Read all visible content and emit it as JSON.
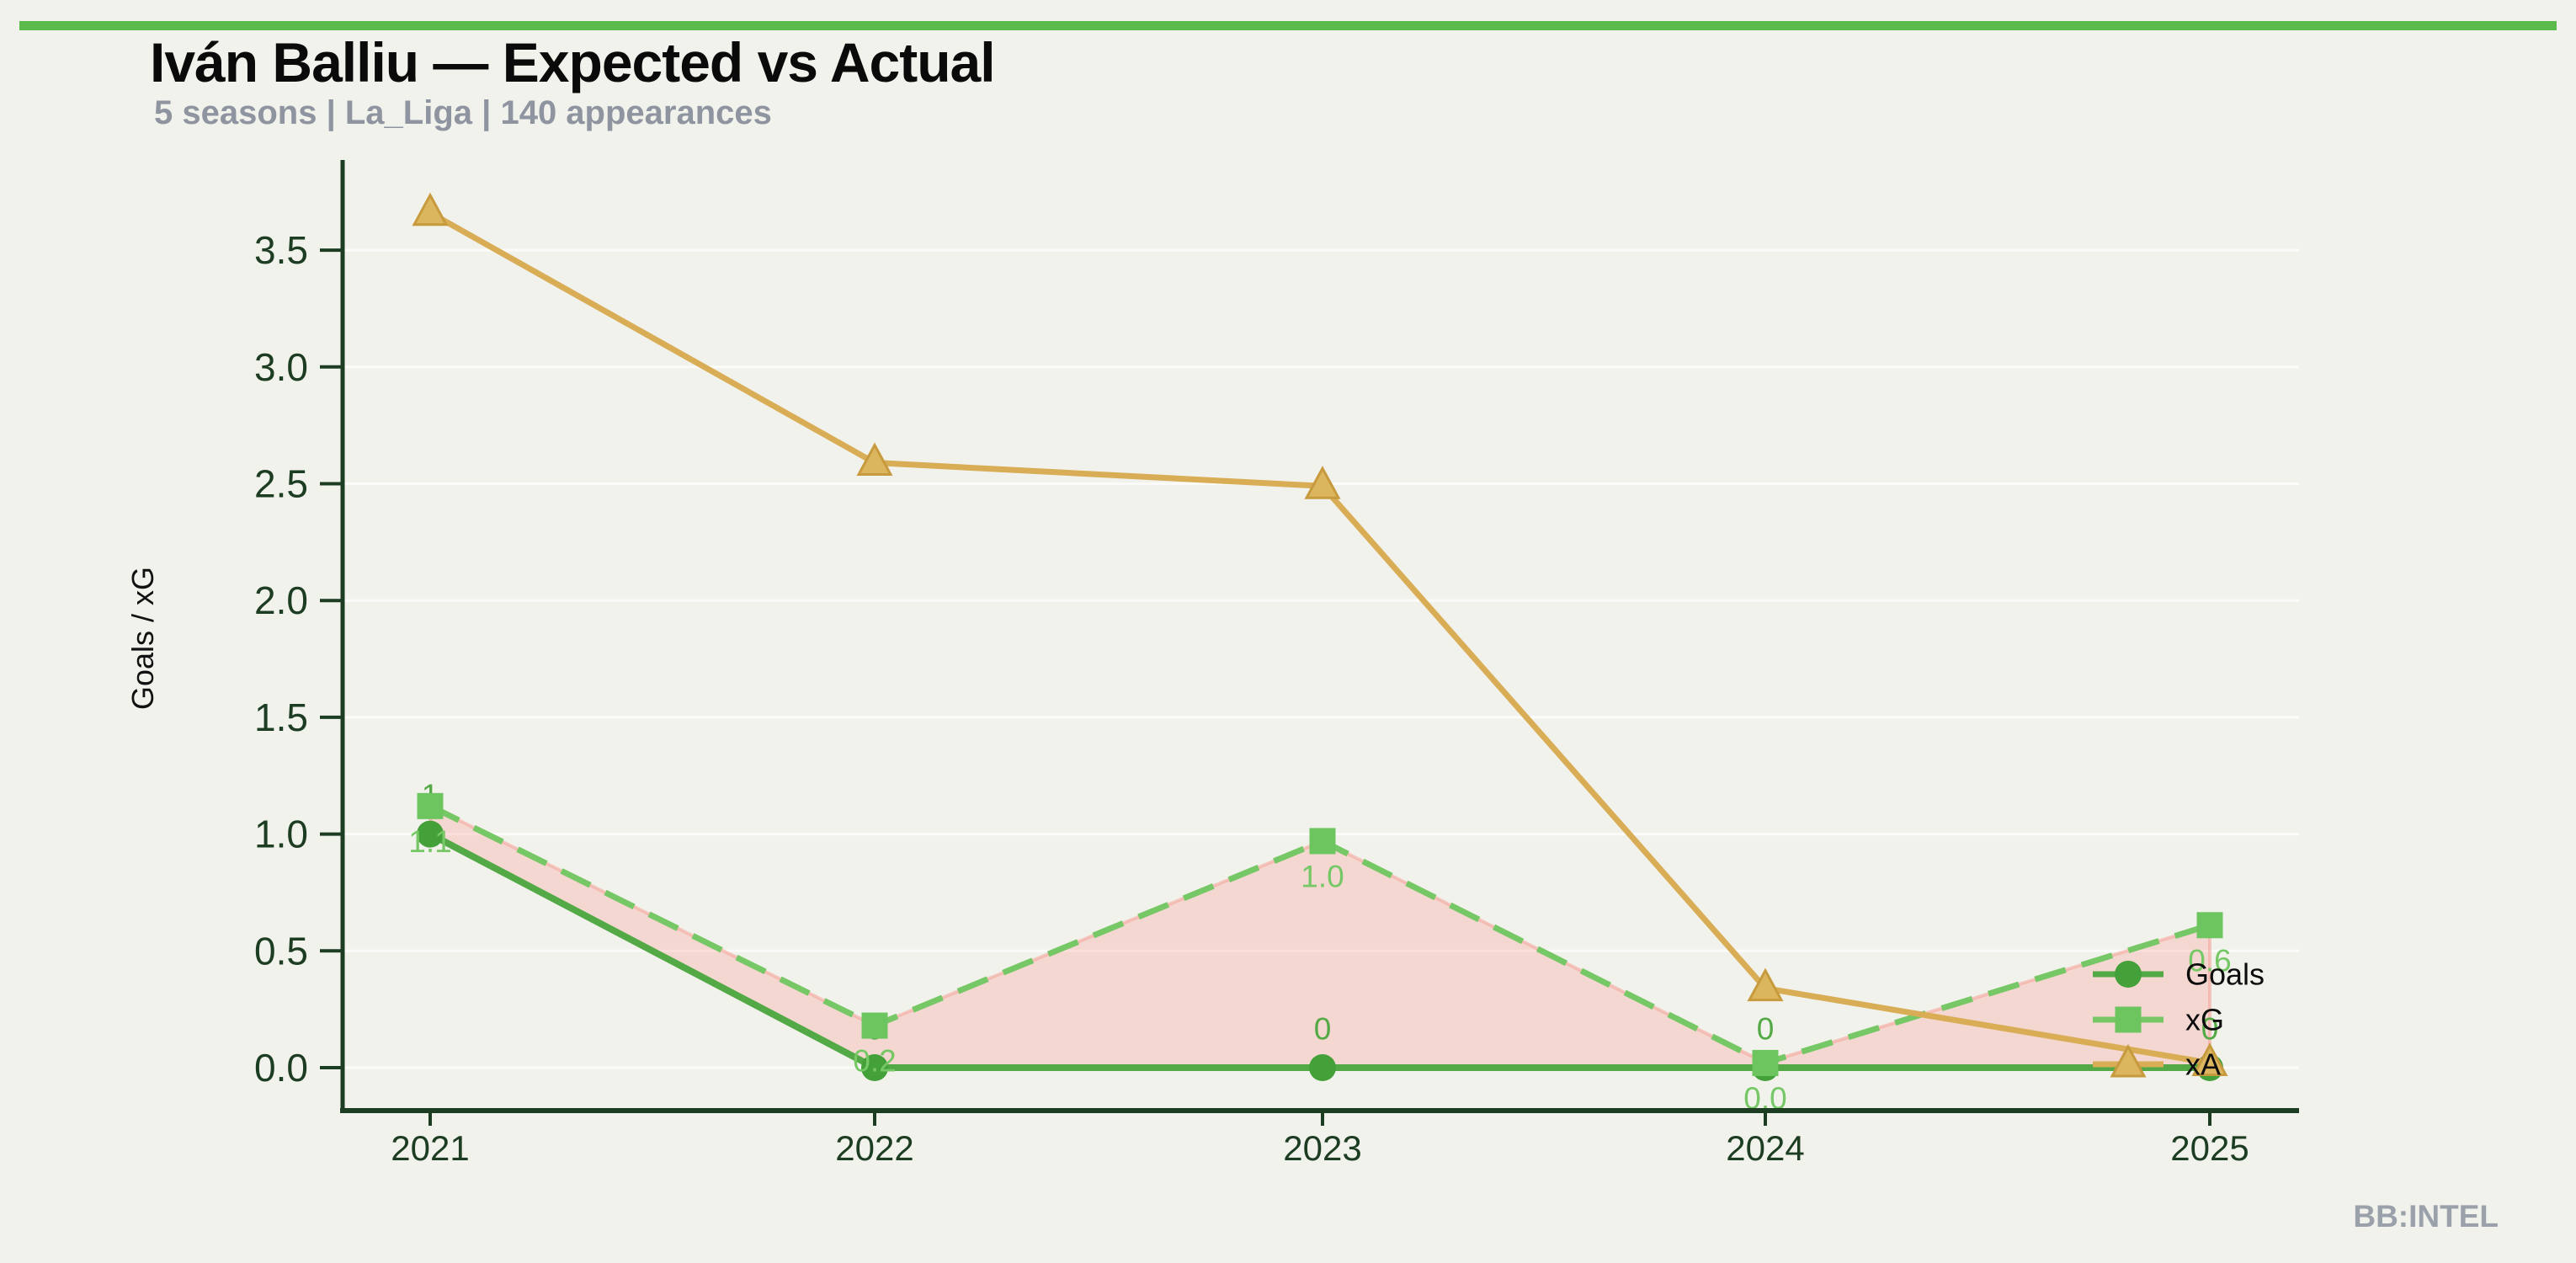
{
  "header": {
    "title": "Iván Balliu — Expected vs Actual",
    "subtitle": "5 seasons | La_Liga | 140 appearances"
  },
  "watermark": "BB:INTEL",
  "colors": {
    "background": "#f2f2ec",
    "top_bar": "#5bba4c",
    "axis": "#1d3d23",
    "goals": "#53a945",
    "goals_marker": "#44a13a",
    "xg": "#76c765",
    "xg_marker": "#6cc55e",
    "xa": "#d9ad56",
    "xa_marker_fill": "#dcb65e",
    "xa_marker_edge": "#c79a3e",
    "fill_between": "rgba(250,135,122,0.25)",
    "fill_edge": "rgba(244,160,150,0.55)",
    "gridline": "rgba(255,255,255,0.7)",
    "subtitle_gray": "#8e95a0",
    "legend_text": "#0d0d0d",
    "watermark_gray": "#9aa1ab"
  },
  "chart_data": {
    "type": "line",
    "title": "Iván Balliu — Expected vs Actual",
    "subtitle": "5 seasons | La_Liga | 140 appearances",
    "xlabel": "",
    "ylabel": "Goals / xG",
    "x": [
      2021,
      2022,
      2023,
      2024,
      2025
    ],
    "x_tick_labels": [
      "2021",
      "2022",
      "2023",
      "2024",
      "2025"
    ],
    "yticks": [
      0.0,
      0.5,
      1.0,
      1.5,
      2.0,
      2.5,
      3.0,
      3.5
    ],
    "ytick_labels": [
      "0.0",
      "0.5",
      "1.0",
      "1.5",
      "2.0",
      "2.5",
      "3.0",
      "3.5"
    ],
    "ylim": [
      0,
      3.7
    ],
    "grid": true,
    "legend_position": "lower right inside",
    "series": [
      {
        "name": "Goals",
        "marker": "circle",
        "line_style": "solid",
        "values": [
          1,
          0,
          0,
          0,
          0
        ],
        "point_labels": [
          "1",
          "0",
          "0",
          "0",
          "0"
        ],
        "label_side": "above"
      },
      {
        "name": "xG",
        "marker": "square",
        "line_style": "dashed",
        "values": [
          1.12,
          0.18,
          0.97,
          0.02,
          0.61
        ],
        "point_labels": [
          "1.1",
          "0.2",
          "1.0",
          "0.0",
          "0.6"
        ],
        "label_side": "below"
      },
      {
        "name": "xA",
        "marker": "triangle",
        "line_style": "solid",
        "values": [
          3.66,
          2.59,
          2.49,
          0.34,
          0.02
        ],
        "point_labels": null,
        "label_side": null
      }
    ],
    "fill_between": {
      "series_a": "xG",
      "series_b": "Goals"
    }
  },
  "legend": {
    "items": [
      {
        "label": "Goals"
      },
      {
        "label": "xG"
      },
      {
        "label": "xA"
      }
    ]
  }
}
